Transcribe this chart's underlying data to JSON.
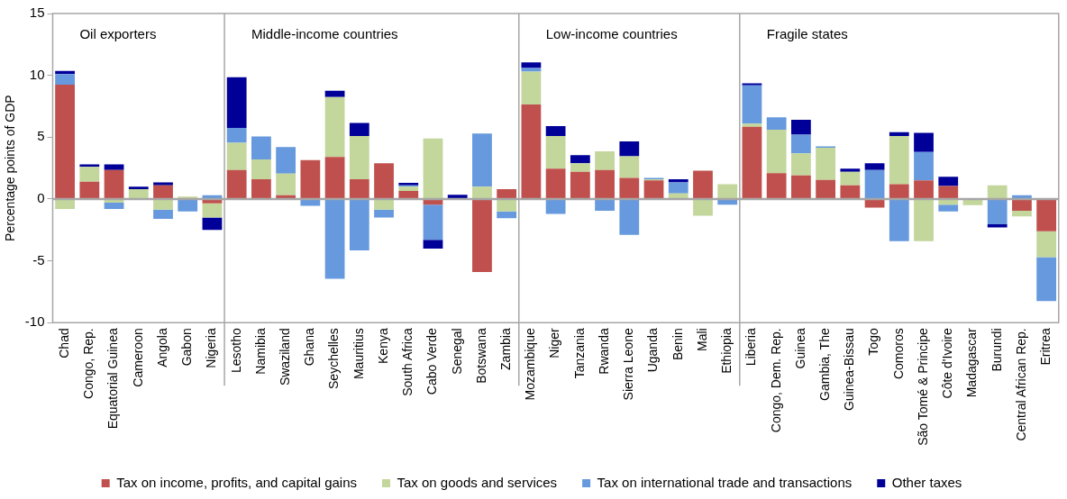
{
  "chart_data": {
    "type": "bar",
    "stacked": true,
    "ylabel": "Percentage points of GDP",
    "ylim": [
      -10,
      15
    ],
    "yticks": [
      -10,
      -5,
      0,
      5,
      10,
      15
    ],
    "legend": "bottom",
    "categories": [
      "Chad",
      "Congo, Rep.",
      "Equatorial Guinea",
      "Cameroon",
      "Angola",
      "Gabon",
      "Nigeria",
      "Lesotho",
      "Namibia",
      "Swaziland",
      "Ghana",
      "Seychelles",
      "Mauritius",
      "Kenya",
      "South Africa",
      "Cabo Verde",
      "Senegal",
      "Botswana",
      "Zambia",
      "Mozambique",
      "Niger",
      "Tanzania",
      "Rwanda",
      "Sierra Leone",
      "Uganda",
      "Benin",
      "Mali",
      "Ethiopia",
      "Liberia",
      "Congo, Dem. Rep.",
      "Guinea",
      "Gambia, The",
      "Guinea-Bissau",
      "Togo",
      "Comoros",
      "São Tomé & Principe",
      "Côte d'Ivoire",
      "Madagascar",
      "Burundi",
      "Central African Rep.",
      "Eritrea"
    ],
    "series": [
      {
        "name": "Tax on income, profits, and capital gains",
        "color": "#c0504d",
        "values": [
          9.25,
          1.4,
          2.35,
          0,
          1.1,
          0,
          -0.35,
          2.35,
          1.6,
          0.3,
          3.15,
          3.4,
          1.6,
          2.9,
          0.65,
          -0.45,
          0,
          -5.9,
          0.8,
          7.65,
          2.45,
          2.2,
          2.35,
          1.7,
          1.5,
          0,
          2.3,
          0,
          5.85,
          2.1,
          1.9,
          1.55,
          1.1,
          -0.7,
          1.2,
          1.5,
          1.05,
          0,
          0,
          -0.95,
          -2.6
        ]
      },
      {
        "name": "Tax on goods and services",
        "color": "#c3d69b",
        "values": [
          -0.8,
          1.2,
          -0.3,
          0.8,
          -0.85,
          0.2,
          -1.15,
          2.2,
          1.6,
          1.75,
          0,
          4.85,
          3.5,
          -0.85,
          0.35,
          4.9,
          0,
          1.0,
          -1.0,
          2.65,
          2.65,
          0.7,
          1.5,
          1.75,
          0.1,
          0.45,
          -1.35,
          1.2,
          0.25,
          3.5,
          1.8,
          2.6,
          1.1,
          0,
          3.9,
          -3.4,
          -0.45,
          -0.5,
          1.1,
          -0.45,
          -2.1
        ]
      },
      {
        "name": "Tax on international trade and transactions",
        "color": "#6699dd",
        "values": [
          0.85,
          0,
          -0.5,
          0,
          -0.75,
          -1.0,
          0.3,
          1.2,
          1.85,
          2.15,
          -0.55,
          -6.45,
          -4.15,
          -0.65,
          0.1,
          -2.85,
          0,
          4.3,
          -0.55,
          0.3,
          -1.2,
          0,
          -0.95,
          -2.9,
          0.1,
          0.9,
          0,
          -0.45,
          3.1,
          1.0,
          1.5,
          0.1,
          0,
          2.35,
          -3.4,
          2.3,
          -0.55,
          0,
          -2.05,
          0.3,
          -3.55
        ]
      },
      {
        "name": "Other taxes",
        "color": "#000099",
        "values": [
          0.25,
          0.2,
          0.45,
          0.2,
          0.25,
          0,
          -1.0,
          4.1,
          0,
          0,
          0,
          0.5,
          1.05,
          0,
          0.2,
          -0.7,
          0.35,
          0,
          0,
          0.45,
          0.8,
          0.65,
          0,
          1.2,
          0,
          0.25,
          0,
          0,
          0.15,
          0,
          1.2,
          0,
          0.25,
          0.55,
          0.3,
          1.55,
          0.75,
          0,
          -0.25,
          0,
          0
        ]
      }
    ],
    "annotations": [
      "Oil exporters",
      "Middle-income countries",
      "Low-income countries",
      "Fragile states"
    ]
  }
}
